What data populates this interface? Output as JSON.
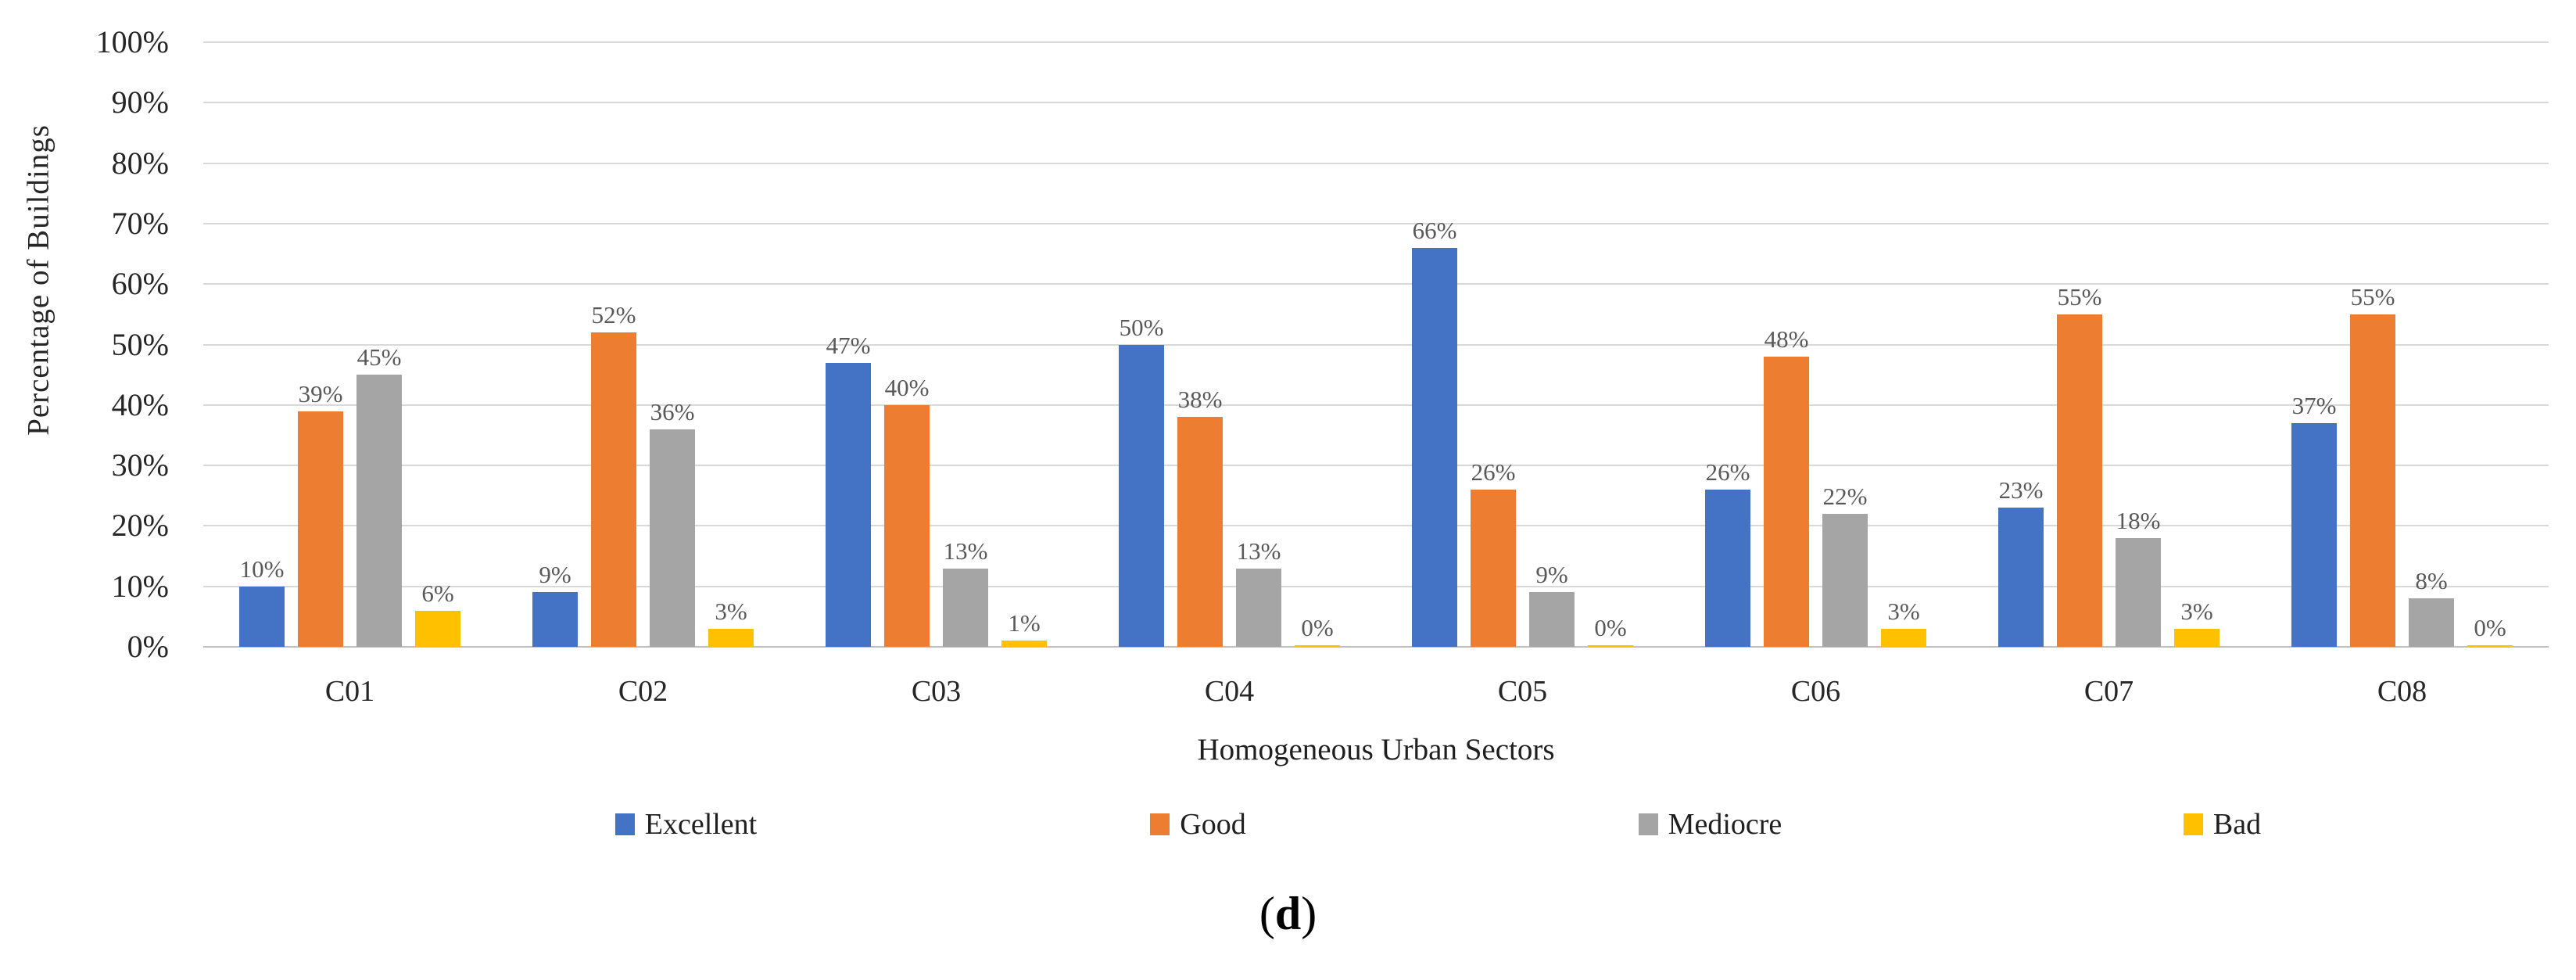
{
  "chart_data": {
    "type": "bar",
    "title": "",
    "categories": [
      "C01",
      "C02",
      "C03",
      "C04",
      "C05",
      "C06",
      "C07",
      "C08"
    ],
    "series": [
      {
        "name": "Excellent",
        "color": "#4472C4",
        "values": [
          10,
          9,
          47,
          50,
          66,
          26,
          23,
          37
        ]
      },
      {
        "name": "Good",
        "color": "#ED7D31",
        "values": [
          39,
          52,
          40,
          38,
          26,
          48,
          55,
          55
        ]
      },
      {
        "name": "Mediocre",
        "color": "#A5A5A5",
        "values": [
          45,
          36,
          13,
          13,
          9,
          22,
          18,
          8
        ]
      },
      {
        "name": "Bad",
        "color": "#FFC000",
        "values": [
          6,
          3,
          1,
          0,
          0,
          3,
          3,
          0
        ]
      }
    ],
    "data_label_suffix": "%",
    "xlabel": "Homogeneous Urban Sectors",
    "ylabel": "Percentage of Buildings",
    "ylim": [
      0,
      100
    ],
    "ytick_step": 10,
    "ytick_suffix": "%",
    "grid": true,
    "legend_position": "bottom"
  },
  "caption": {
    "open": "(",
    "letter": "d",
    "close": ")"
  },
  "colors": {
    "gridline": "#D9D9D9",
    "axis_line": "#BFBFBF",
    "tick_text": "#262626",
    "data_label_text": "#595959"
  }
}
